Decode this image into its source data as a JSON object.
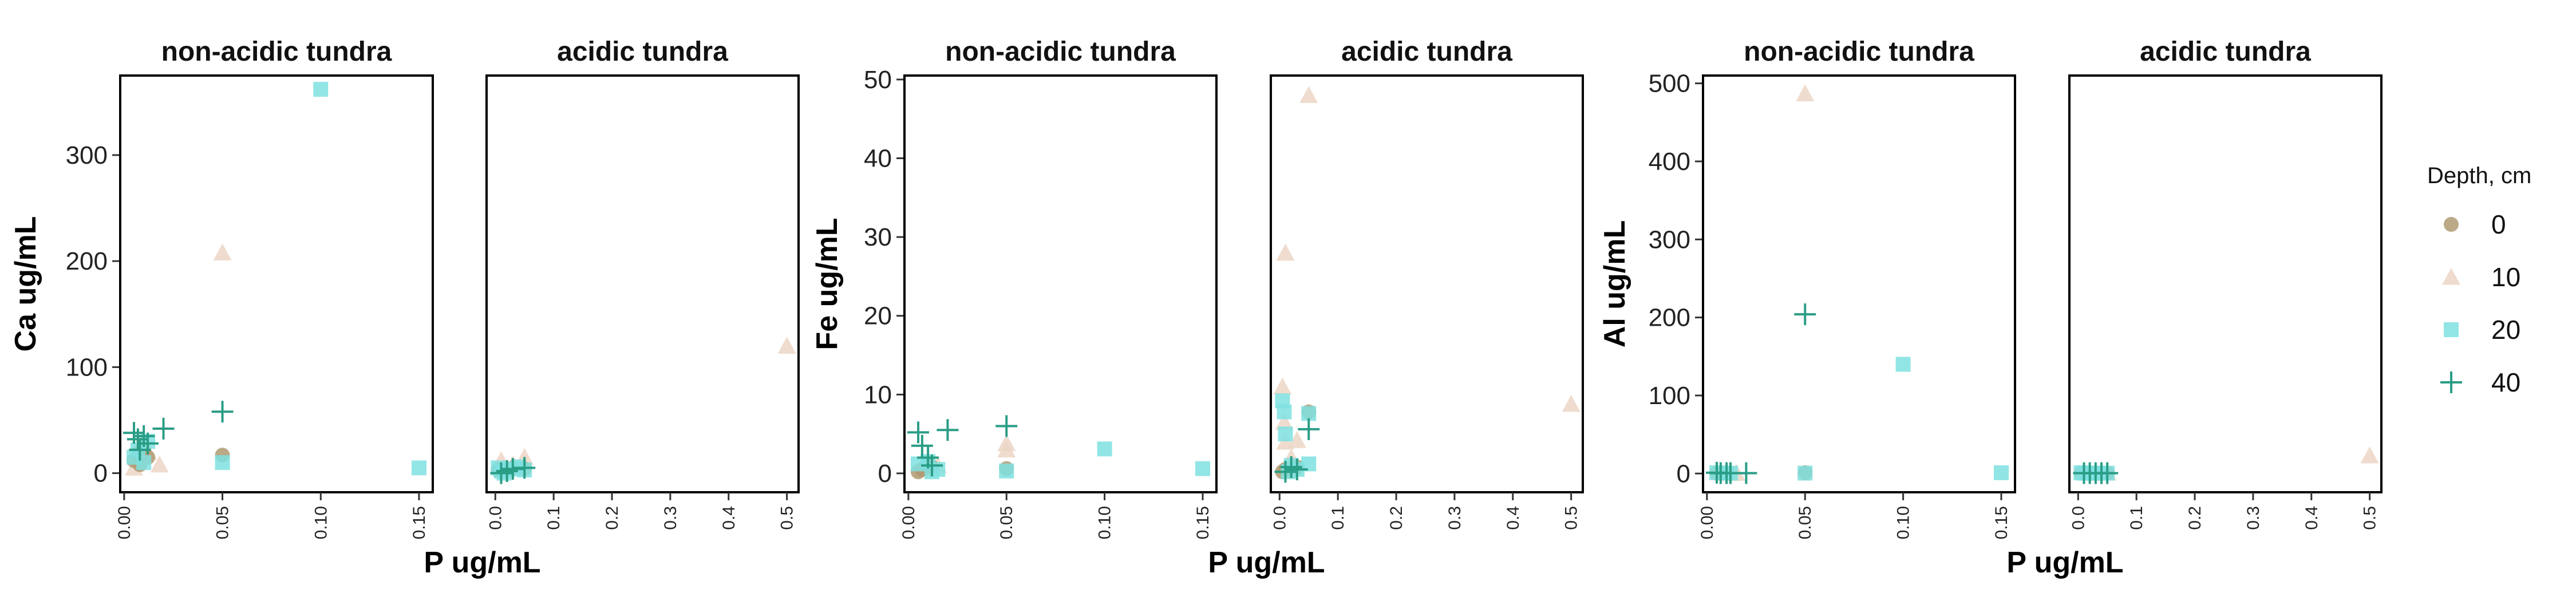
{
  "chart_data": [
    {
      "type": "scatter",
      "ylabel": "Ca ug/mL",
      "xlabel": "P ug/mL",
      "ylim": [
        -18,
        375
      ],
      "yticks": [
        0,
        100,
        200,
        300
      ],
      "panels": [
        {
          "strip": "non-acidic tundra",
          "xlim": [
            -0.002,
            0.157
          ],
          "xticks": [
            "0.00",
            "0.05",
            "0.10",
            "0.15"
          ],
          "xtick_values": [
            0.0,
            0.05,
            0.1,
            0.15
          ],
          "series": [
            {
              "name": "0",
              "points": [
                [
                  0.005,
                  12
                ],
                [
                  0.007,
                  18
                ],
                [
                  0.01,
                  22
                ],
                [
                  0.012,
                  15
                ],
                [
                  0.05,
                  17
                ],
                [
                  0.008,
                  8
                ]
              ]
            },
            {
              "name": "10",
              "points": [
                [
                  0.05,
                  208
                ],
                [
                  0.018,
                  8
                ],
                [
                  0.008,
                  28
                ],
                [
                  0.012,
                  20
                ],
                [
                  0.005,
                  5
                ]
              ]
            },
            {
              "name": "20",
              "points": [
                [
                  0.1,
                  362
                ],
                [
                  0.15,
                  5
                ],
                [
                  0.05,
                  10
                ],
                [
                  0.01,
                  10
                ],
                [
                  0.012,
                  30
                ],
                [
                  0.007,
                  22
                ],
                [
                  0.005,
                  15
                ]
              ]
            },
            {
              "name": "40",
              "points": [
                [
                  0.05,
                  58
                ],
                [
                  0.02,
                  42
                ],
                [
                  0.005,
                  38
                ],
                [
                  0.007,
                  32
                ],
                [
                  0.01,
                  35
                ],
                [
                  0.012,
                  28
                ],
                [
                  0.008,
                  22
                ]
              ]
            }
          ]
        },
        {
          "strip": "acidic tundra",
          "xlim": [
            -0.015,
            0.52
          ],
          "xticks": [
            "0.0",
            "0.1",
            "0.2",
            "0.3",
            "0.4",
            "0.5"
          ],
          "xtick_values": [
            0.0,
            0.1,
            0.2,
            0.3,
            0.4,
            0.5
          ],
          "series": [
            {
              "name": "0",
              "points": [
                [
                  0.005,
                  3
                ],
                [
                  0.01,
                  2
                ],
                [
                  0.02,
                  3
                ],
                [
                  0.03,
                  5
                ],
                [
                  0.05,
                  4
                ]
              ]
            },
            {
              "name": "10",
              "points": [
                [
                  0.5,
                  120
                ],
                [
                  0.01,
                  12
                ],
                [
                  0.05,
                  15
                ],
                [
                  0.03,
                  8
                ],
                [
                  0.02,
                  5
                ]
              ]
            },
            {
              "name": "20",
              "points": [
                [
                  0.005,
                  5
                ],
                [
                  0.01,
                  2
                ],
                [
                  0.02,
                  3
                ],
                [
                  0.03,
                  4
                ],
                [
                  0.04,
                  6
                ],
                [
                  0.05,
                  3
                ],
                [
                  0.015,
                  0
                ]
              ]
            },
            {
              "name": "40",
              "points": [
                [
                  0.05,
                  5
                ],
                [
                  0.02,
                  2
                ],
                [
                  0.03,
                  4
                ],
                [
                  0.01,
                  0
                ]
              ]
            }
          ]
        }
      ]
    },
    {
      "type": "scatter",
      "ylabel": "Fe ug/mL",
      "xlabel": "P ug/mL",
      "ylim": [
        -2.4,
        50.5
      ],
      "yticks": [
        0,
        10,
        20,
        30,
        40,
        50
      ],
      "panels": [
        {
          "strip": "non-acidic tundra",
          "xlim": [
            -0.002,
            0.157
          ],
          "xticks": [
            "0.00",
            "0.05",
            "0.10",
            "0.15"
          ],
          "xtick_values": [
            0.0,
            0.05,
            0.1,
            0.15
          ],
          "series": [
            {
              "name": "0",
              "points": [
                [
                  0.005,
                  0.2
                ],
                [
                  0.007,
                  0.5
                ],
                [
                  0.01,
                  1.2
                ],
                [
                  0.05,
                  0.6
                ],
                [
                  0.012,
                  0.8
                ]
              ]
            },
            {
              "name": "10",
              "points": [
                [
                  0.05,
                  3.8
                ],
                [
                  0.05,
                  3.0
                ],
                [
                  0.015,
                  1.0
                ],
                [
                  0.008,
                  0.5
                ]
              ]
            },
            {
              "name": "20",
              "points": [
                [
                  0.1,
                  3.1
                ],
                [
                  0.15,
                  0.6
                ],
                [
                  0.005,
                  1.2
                ],
                [
                  0.01,
                  1.5
                ],
                [
                  0.015,
                  0.5
                ],
                [
                  0.05,
                  0.3
                ],
                [
                  0.012,
                  0.2
                ]
              ]
            },
            {
              "name": "40",
              "points": [
                [
                  0.05,
                  6.0
                ],
                [
                  0.02,
                  5.5
                ],
                [
                  0.005,
                  5.2
                ],
                [
                  0.007,
                  3.5
                ],
                [
                  0.01,
                  2.0
                ],
                [
                  0.012,
                  1.0
                ]
              ]
            }
          ]
        },
        {
          "strip": "acidic tundra",
          "xlim": [
            -0.015,
            0.52
          ],
          "xticks": [
            "0.0",
            "0.1",
            "0.2",
            "0.3",
            "0.4",
            "0.5"
          ],
          "xtick_values": [
            0.0,
            0.1,
            0.2,
            0.3,
            0.4,
            0.5
          ],
          "series": [
            {
              "name": "0",
              "points": [
                [
                  0.005,
                  0.2
                ],
                [
                  0.01,
                  0.5
                ],
                [
                  0.05,
                  7.8
                ],
                [
                  0.03,
                  0.8
                ],
                [
                  0.02,
                  0.3
                ]
              ]
            },
            {
              "name": "10",
              "points": [
                [
                  0.05,
                  48
                ],
                [
                  0.01,
                  28
                ],
                [
                  0.5,
                  8.8
                ],
                [
                  0.005,
                  11
                ],
                [
                  0.008,
                  6.5
                ],
                [
                  0.01,
                  4.0
                ],
                [
                  0.03,
                  4.2
                ],
                [
                  0.02,
                  2.0
                ]
              ]
            },
            {
              "name": "20",
              "points": [
                [
                  0.005,
                  9.2
                ],
                [
                  0.008,
                  7.8
                ],
                [
                  0.01,
                  5.0
                ],
                [
                  0.05,
                  7.6
                ],
                [
                  0.02,
                  1.0
                ],
                [
                  0.05,
                  1.2
                ],
                [
                  0.03,
                  0.5
                ],
                [
                  0.015,
                  0.2
                ]
              ]
            },
            {
              "name": "40",
              "points": [
                [
                  0.05,
                  5.6
                ],
                [
                  0.02,
                  0.8
                ],
                [
                  0.03,
                  0.5
                ],
                [
                  0.01,
                  0.2
                ]
              ]
            }
          ]
        }
      ]
    },
    {
      "type": "scatter",
      "ylabel": "Al ug/mL",
      "xlabel": "P ug/mL",
      "ylim": [
        -24,
        510
      ],
      "yticks": [
        0,
        100,
        200,
        300,
        400,
        500
      ],
      "panels": [
        {
          "strip": "non-acidic tundra",
          "xlim": [
            -0.002,
            0.157
          ],
          "xticks": [
            "0.00",
            "0.05",
            "0.10",
            "0.15"
          ],
          "xtick_values": [
            0.0,
            0.05,
            0.1,
            0.15
          ],
          "series": [
            {
              "name": "0",
              "points": [
                [
                  0.05,
                  1
                ],
                [
                  0.005,
                  0.5
                ],
                [
                  0.01,
                  0.5
                ],
                [
                  0.008,
                  0.3
                ]
              ]
            },
            {
              "name": "10",
              "points": [
                [
                  0.05,
                  487
                ],
                [
                  0.01,
                  1
                ],
                [
                  0.015,
                  0.5
                ]
              ]
            },
            {
              "name": "20",
              "points": [
                [
                  0.1,
                  140
                ],
                [
                  0.15,
                  1
                ],
                [
                  0.005,
                  1
                ],
                [
                  0.01,
                  0.5
                ],
                [
                  0.012,
                  0.5
                ],
                [
                  0.05,
                  0.5
                ]
              ]
            },
            {
              "name": "40",
              "points": [
                [
                  0.05,
                  204
                ],
                [
                  0.005,
                  1
                ],
                [
                  0.007,
                  0.5
                ],
                [
                  0.01,
                  0.5
                ],
                [
                  0.012,
                  0.5
                ],
                [
                  0.02,
                  0.5
                ]
              ]
            }
          ]
        },
        {
          "strip": "acidic tundra",
          "xlim": [
            -0.015,
            0.52
          ],
          "xticks": [
            "0.0",
            "0.1",
            "0.2",
            "0.3",
            "0.4",
            "0.5"
          ],
          "xtick_values": [
            0.0,
            0.1,
            0.2,
            0.3,
            0.4,
            0.5
          ],
          "series": [
            {
              "name": "0",
              "points": [
                [
                  0.005,
                  0.5
                ],
                [
                  0.01,
                  0.5
                ],
                [
                  0.05,
                  0.5
                ],
                [
                  0.03,
                  0.5
                ]
              ]
            },
            {
              "name": "10",
              "points": [
                [
                  0.5,
                  23
                ],
                [
                  0.01,
                  1
                ],
                [
                  0.05,
                  1
                ],
                [
                  0.03,
                  0.5
                ]
              ]
            },
            {
              "name": "20",
              "points": [
                [
                  0.005,
                  1
                ],
                [
                  0.01,
                  0.5
                ],
                [
                  0.02,
                  0.5
                ],
                [
                  0.03,
                  0.5
                ],
                [
                  0.04,
                  0.5
                ],
                [
                  0.05,
                  0.5
                ],
                [
                  0.015,
                  0.5
                ]
              ]
            },
            {
              "name": "40",
              "points": [
                [
                  0.05,
                  0.5
                ],
                [
                  0.02,
                  0.5
                ],
                [
                  0.03,
                  0.5
                ],
                [
                  0.01,
                  0.5
                ],
                [
                  0.04,
                  0.5
                ]
              ]
            }
          ]
        }
      ]
    }
  ],
  "legend": {
    "title": "Depth, cm",
    "placement": "right",
    "items": [
      {
        "label": "0",
        "shape": "circle",
        "color": "#b09a72"
      },
      {
        "label": "10",
        "shape": "triangle",
        "color": "#ecd6c6"
      },
      {
        "label": "20",
        "shape": "square",
        "color": "#7fe0e0"
      },
      {
        "label": "40",
        "shape": "plus",
        "color": "#2a9d86"
      }
    ]
  }
}
